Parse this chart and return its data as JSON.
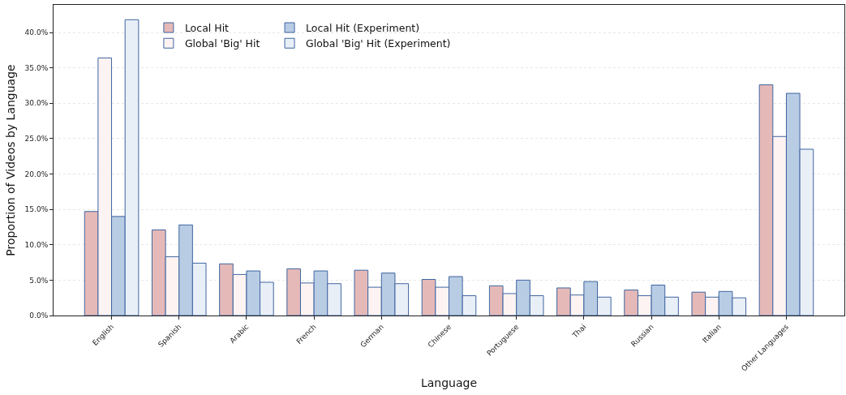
{
  "chart_data": {
    "type": "bar",
    "xlabel": "Language",
    "ylabel": "Proportion of Videos by Language",
    "categories": [
      "English",
      "Spanish",
      "Arabic",
      "French",
      "German",
      "Chinese",
      "Portuguese",
      "Thai",
      "Russian",
      "Italian",
      "Other Languages"
    ],
    "series": [
      {
        "name": "Local Hit",
        "color": "#e5b9b8",
        "values": [
          14.7,
          12.1,
          7.3,
          6.6,
          6.4,
          5.1,
          4.2,
          3.9,
          3.6,
          3.3,
          32.6
        ]
      },
      {
        "name": "Global 'Big' Hit",
        "color": "#fcf3f2",
        "values": [
          36.4,
          8.3,
          5.8,
          4.6,
          4.0,
          4.0,
          3.1,
          2.9,
          2.8,
          2.6,
          25.3
        ]
      },
      {
        "name": "Local Hit (Experiment)",
        "color": "#b8cce4",
        "values": [
          14.0,
          12.8,
          6.3,
          6.3,
          6.0,
          5.5,
          5.0,
          4.8,
          4.3,
          3.4,
          31.4
        ]
      },
      {
        "name": "Global 'Big' Hit (Experiment)",
        "color": "#e9eff7",
        "values": [
          41.8,
          7.4,
          4.7,
          4.5,
          4.5,
          2.8,
          2.8,
          2.6,
          2.6,
          2.5,
          23.5
        ]
      }
    ],
    "ylim": [
      0,
      43.9
    ],
    "yticks": [
      {
        "value": 0,
        "label": "0.0%"
      },
      {
        "value": 5,
        "label": "5.0%"
      },
      {
        "value": 10,
        "label": "10.0%"
      },
      {
        "value": 15,
        "label": "15.0%"
      },
      {
        "value": 20,
        "label": "20.0%"
      },
      {
        "value": 25,
        "label": "25.0%"
      },
      {
        "value": 30,
        "label": "30.0%"
      },
      {
        "value": 35,
        "label": "35.0%"
      },
      {
        "value": 40,
        "label": "40.0%"
      }
    ],
    "grid": "y",
    "legend": "top left"
  }
}
